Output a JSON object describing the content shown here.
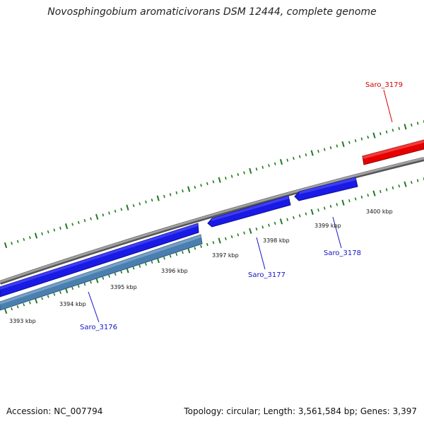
{
  "title": "Novosphingobium aromaticivorans DSM 12444, complete genome",
  "accession": "Accession: NC_007794",
  "topology": "Topology: circular; Length: 3,561,584 bp; Genes: 3,397",
  "colors": {
    "backbone": "#8c8c8c",
    "tick": "#1f7a1f",
    "gene_blue": "#1a1ae6",
    "gene_red": "#e60000",
    "gene_steel": "#4a7fb0",
    "label_blue": "#1414c8",
    "label_red": "#d20000"
  },
  "scale_labels": [
    "3393 kbp",
    "3394 kbp",
    "3395 kbp",
    "3396 kbp",
    "3397 kbp",
    "3398 kbp",
    "3399 kbp",
    "3400 kbp"
  ],
  "genes": [
    {
      "name": "Saro_3176",
      "color": "gene_steel"
    },
    {
      "name": "Saro_3177",
      "color": "gene_blue"
    },
    {
      "name": "Saro_3178",
      "color": "gene_blue"
    },
    {
      "name": "Saro_3179",
      "color": "gene_red"
    }
  ]
}
